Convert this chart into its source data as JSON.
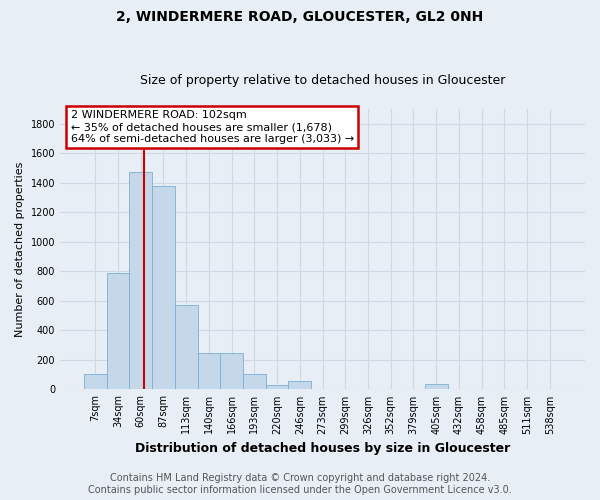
{
  "title": "2, WINDERMERE ROAD, GLOUCESTER, GL2 0NH",
  "subtitle": "Size of property relative to detached houses in Gloucester",
  "xlabel": "Distribution of detached houses by size in Gloucester",
  "ylabel": "Number of detached properties",
  "categories": [
    "7sqm",
    "34sqm",
    "60sqm",
    "87sqm",
    "113sqm",
    "140sqm",
    "166sqm",
    "193sqm",
    "220sqm",
    "246sqm",
    "273sqm",
    "299sqm",
    "326sqm",
    "352sqm",
    "379sqm",
    "405sqm",
    "432sqm",
    "458sqm",
    "485sqm",
    "511sqm",
    "538sqm"
  ],
  "values": [
    105,
    790,
    1470,
    1380,
    570,
    250,
    250,
    105,
    30,
    60,
    5,
    5,
    5,
    5,
    5,
    35,
    5,
    5,
    5,
    5,
    5
  ],
  "bar_color": "#c5d8ea",
  "bar_edge_color": "#7bafd4",
  "annotation_text": "2 WINDERMERE ROAD: 102sqm\n← 35% of detached houses are smaller (1,678)\n64% of semi-detached houses are larger (3,033) →",
  "annotation_box_facecolor": "#ffffff",
  "annotation_box_edgecolor": "#cc0000",
  "annotation_text_color": "#000000",
  "vline_color": "#cc0000",
  "vline_x": 2.15,
  "ylim": [
    0,
    1900
  ],
  "yticks": [
    0,
    200,
    400,
    600,
    800,
    1000,
    1200,
    1400,
    1600,
    1800
  ],
  "background_color": "#e8eef5",
  "grid_color": "#d0d8e4",
  "footer_line1": "Contains HM Land Registry data © Crown copyright and database right 2024.",
  "footer_line2": "Contains public sector information licensed under the Open Government Licence v3.0.",
  "title_fontsize": 10,
  "subtitle_fontsize": 9,
  "xlabel_fontsize": 9,
  "ylabel_fontsize": 8,
  "tick_fontsize": 7,
  "annotation_fontsize": 8,
  "footer_fontsize": 7
}
